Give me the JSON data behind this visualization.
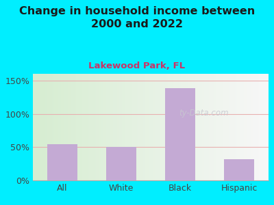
{
  "title": "Change in household income between\n2000 and 2022",
  "subtitle": "Lakewood Park, FL",
  "categories": [
    "All",
    "White",
    "Black",
    "Hispanic"
  ],
  "values": [
    54,
    50,
    138,
    32
  ],
  "bar_color": "#c4aad4",
  "title_fontsize": 11.5,
  "subtitle_fontsize": 9.5,
  "subtitle_color": "#cc3366",
  "tick_label_fontsize": 9,
  "background_outer": "#00eeff",
  "ylim": [
    0,
    160
  ],
  "yticks": [
    0,
    50,
    100,
    150
  ],
  "ytick_labels": [
    "0%",
    "50%",
    "100%",
    "150%"
  ],
  "grid_color": "#e8b0b0",
  "watermark": "ty-Data.com",
  "watermark_color": "#c8c8d0"
}
